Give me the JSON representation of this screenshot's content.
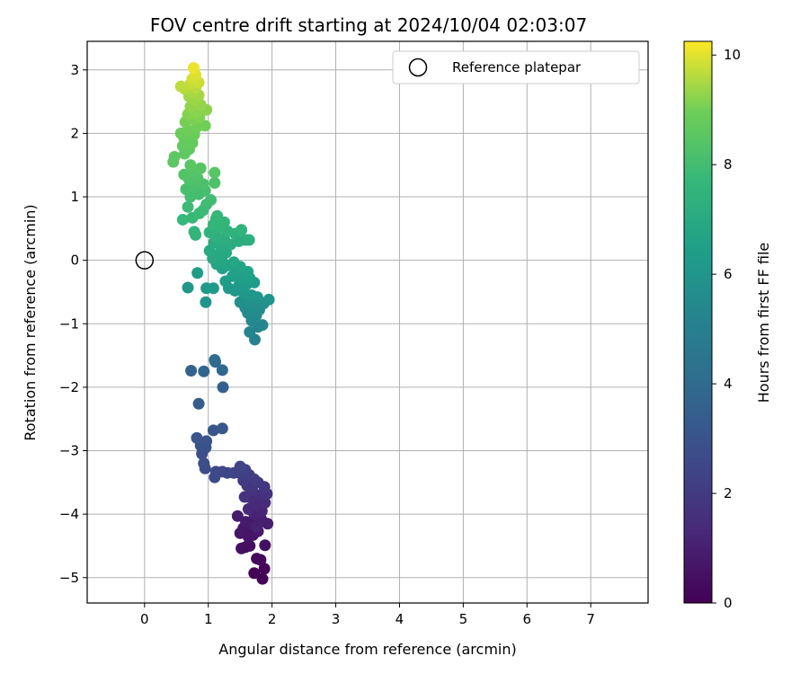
{
  "chart_data": {
    "type": "scatter",
    "title": "FOV centre drift starting at 2024/10/04 02:03:07",
    "xlabel": "Angular distance from reference (arcmin)",
    "ylabel": "Rotation from reference (arcmin)",
    "xlim": [
      -0.9,
      7.9
    ],
    "ylim": [
      -5.4,
      3.45
    ],
    "xticks": [
      0,
      1,
      2,
      3,
      4,
      5,
      6,
      7
    ],
    "yticks": [
      3,
      2,
      1,
      0,
      -1,
      -2,
      -3,
      -4,
      -5
    ],
    "xtick_labels": [
      "0",
      "1",
      "2",
      "3",
      "4",
      "5",
      "6",
      "7"
    ],
    "ytick_labels": [
      "3",
      "2",
      "1",
      "0",
      "−1",
      "−2",
      "−3",
      "−4",
      "−5"
    ],
    "grid": true,
    "legend": {
      "location": "top-right",
      "entries": [
        "Reference platepar"
      ]
    },
    "reference_point": {
      "x": 0,
      "y": 0,
      "label": "Reference platepar"
    },
    "colorbar": {
      "label": "Hours from first FF file",
      "min": 0,
      "max": 10.25,
      "ticks": [
        0,
        2,
        4,
        6,
        8,
        10
      ],
      "tick_labels": [
        "0",
        "2",
        "4",
        "6",
        "8",
        "10"
      ],
      "colormap": "viridis"
    },
    "points": [
      {
        "x": 1.85,
        "y": -5.02,
        "c": 0.05
      },
      {
        "x": 1.72,
        "y": -4.93,
        "c": 0.12
      },
      {
        "x": 1.88,
        "y": -4.86,
        "c": 0.18
      },
      {
        "x": 1.76,
        "y": -4.7,
        "c": 0.25
      },
      {
        "x": 1.82,
        "y": -4.72,
        "c": 0.3
      },
      {
        "x": 1.58,
        "y": -4.52,
        "c": 0.38
      },
      {
        "x": 1.65,
        "y": -4.5,
        "c": 0.42
      },
      {
        "x": 1.52,
        "y": -4.54,
        "c": 0.46
      },
      {
        "x": 1.89,
        "y": -4.49,
        "c": 0.5
      },
      {
        "x": 1.7,
        "y": -4.33,
        "c": 0.55
      },
      {
        "x": 1.61,
        "y": -4.32,
        "c": 0.6
      },
      {
        "x": 1.63,
        "y": -4.36,
        "c": 0.64
      },
      {
        "x": 1.5,
        "y": -4.3,
        "c": 0.68
      },
      {
        "x": 1.55,
        "y": -4.22,
        "c": 0.72
      },
      {
        "x": 1.78,
        "y": -4.27,
        "c": 0.76
      },
      {
        "x": 1.68,
        "y": -4.16,
        "c": 0.8
      },
      {
        "x": 1.59,
        "y": -4.12,
        "c": 0.84
      },
      {
        "x": 1.46,
        "y": -4.03,
        "c": 0.88
      },
      {
        "x": 1.93,
        "y": -4.15,
        "c": 0.92
      },
      {
        "x": 1.83,
        "y": -4.08,
        "c": 0.98
      },
      {
        "x": 1.76,
        "y": -4.2,
        "c": 1.05
      },
      {
        "x": 1.72,
        "y": -4.0,
        "c": 1.12
      },
      {
        "x": 1.84,
        "y": -3.95,
        "c": 1.2
      },
      {
        "x": 1.63,
        "y": -3.92,
        "c": 1.28
      },
      {
        "x": 1.74,
        "y": -3.85,
        "c": 1.36
      },
      {
        "x": 1.89,
        "y": -3.82,
        "c": 1.44
      },
      {
        "x": 1.66,
        "y": -3.74,
        "c": 1.52
      },
      {
        "x": 1.81,
        "y": -3.7,
        "c": 1.6
      },
      {
        "x": 1.92,
        "y": -3.68,
        "c": 1.66
      },
      {
        "x": 1.57,
        "y": -3.73,
        "c": 1.72
      },
      {
        "x": 1.69,
        "y": -3.62,
        "c": 1.78
      },
      {
        "x": 1.88,
        "y": -3.57,
        "c": 1.84
      },
      {
        "x": 1.61,
        "y": -3.55,
        "c": 1.9
      },
      {
        "x": 1.78,
        "y": -3.5,
        "c": 1.96
      },
      {
        "x": 1.55,
        "y": -3.47,
        "c": 2.02
      },
      {
        "x": 1.72,
        "y": -3.45,
        "c": 2.08
      },
      {
        "x": 1.64,
        "y": -3.38,
        "c": 2.14
      },
      {
        "x": 1.49,
        "y": -3.35,
        "c": 2.2
      },
      {
        "x": 1.58,
        "y": -3.3,
        "c": 2.26
      },
      {
        "x": 1.5,
        "y": -3.25,
        "c": 2.32
      },
      {
        "x": 1.4,
        "y": -3.35,
        "c": 2.38
      },
      {
        "x": 1.3,
        "y": -3.35,
        "c": 2.44
      },
      {
        "x": 1.22,
        "y": -3.33,
        "c": 2.5
      },
      {
        "x": 1.12,
        "y": -3.33,
        "c": 2.56
      },
      {
        "x": 1.1,
        "y": -3.42,
        "c": 2.62
      },
      {
        "x": 0.95,
        "y": -3.28,
        "c": 2.68
      },
      {
        "x": 0.93,
        "y": -3.2,
        "c": 2.74
      },
      {
        "x": 0.9,
        "y": -3.05,
        "c": 2.8
      },
      {
        "x": 0.96,
        "y": -2.95,
        "c": 2.86
      },
      {
        "x": 0.88,
        "y": -2.92,
        "c": 2.92
      },
      {
        "x": 0.97,
        "y": -2.85,
        "c": 2.98
      },
      {
        "x": 0.82,
        "y": -2.8,
        "c": 3.04
      },
      {
        "x": 1.08,
        "y": -2.68,
        "c": 3.1
      },
      {
        "x": 1.22,
        "y": -2.65,
        "c": 3.16
      },
      {
        "x": 0.85,
        "y": -2.26,
        "c": 3.35
      },
      {
        "x": 1.23,
        "y": -2.0,
        "c": 3.5
      },
      {
        "x": 0.73,
        "y": -1.74,
        "c": 3.65
      },
      {
        "x": 0.93,
        "y": -1.75,
        "c": 3.75
      },
      {
        "x": 1.22,
        "y": -1.73,
        "c": 3.85
      },
      {
        "x": 1.11,
        "y": -1.6,
        "c": 3.95
      },
      {
        "x": 1.1,
        "y": -1.57,
        "c": 4.05
      },
      {
        "x": 1.73,
        "y": -1.25,
        "c": 5.1
      },
      {
        "x": 1.65,
        "y": -1.13,
        "c": 5.2
      },
      {
        "x": 1.78,
        "y": -1.05,
        "c": 5.28
      },
      {
        "x": 1.85,
        "y": -1.02,
        "c": 5.34
      },
      {
        "x": 1.68,
        "y": -0.95,
        "c": 5.4
      },
      {
        "x": 1.75,
        "y": -0.87,
        "c": 5.46
      },
      {
        "x": 1.62,
        "y": -0.83,
        "c": 5.52
      },
      {
        "x": 1.8,
        "y": -0.78,
        "c": 5.58
      },
      {
        "x": 1.58,
        "y": -0.75,
        "c": 5.64
      },
      {
        "x": 1.7,
        "y": -0.72,
        "c": 5.7
      },
      {
        "x": 1.87,
        "y": -0.68,
        "c": 5.76
      },
      {
        "x": 1.5,
        "y": -0.66,
        "c": 5.82
      },
      {
        "x": 1.63,
        "y": -0.62,
        "c": 5.88
      },
      {
        "x": 1.95,
        "y": -0.62,
        "c": 5.94
      },
      {
        "x": 1.77,
        "y": -0.58,
        "c": 6.0
      },
      {
        "x": 1.68,
        "y": -0.55,
        "c": 6.05
      },
      {
        "x": 1.56,
        "y": -0.52,
        "c": 6.1
      },
      {
        "x": 1.42,
        "y": -0.48,
        "c": 6.15
      },
      {
        "x": 1.32,
        "y": -0.44,
        "c": 6.2
      },
      {
        "x": 1.48,
        "y": -0.4,
        "c": 6.24
      },
      {
        "x": 1.6,
        "y": -0.38,
        "c": 6.28
      },
      {
        "x": 1.72,
        "y": -0.35,
        "c": 6.32
      },
      {
        "x": 1.27,
        "y": -0.33,
        "c": 6.36
      },
      {
        "x": 1.53,
        "y": -0.3,
        "c": 6.4
      },
      {
        "x": 1.65,
        "y": -0.28,
        "c": 6.44
      },
      {
        "x": 1.38,
        "y": -0.25,
        "c": 6.48
      },
      {
        "x": 1.56,
        "y": -0.2,
        "c": 6.52
      },
      {
        "x": 1.45,
        "y": -0.16,
        "c": 6.56
      },
      {
        "x": 1.62,
        "y": -0.18,
        "c": 6.6
      },
      {
        "x": 1.22,
        "y": -0.13,
        "c": 6.64
      },
      {
        "x": 1.5,
        "y": -0.1,
        "c": 6.68
      },
      {
        "x": 1.31,
        "y": -0.08,
        "c": 6.72
      },
      {
        "x": 1.13,
        "y": -0.06,
        "c": 6.76
      },
      {
        "x": 1.4,
        "y": -0.03,
        "c": 6.8
      },
      {
        "x": 1.21,
        "y": 0.0,
        "c": 6.84
      },
      {
        "x": 1.07,
        "y": 0.03,
        "c": 6.88
      },
      {
        "x": 0.68,
        "y": -0.43,
        "c": 6.1
      },
      {
        "x": 0.96,
        "y": -0.66,
        "c": 6.0
      },
      {
        "x": 0.83,
        "y": -0.2,
        "c": 6.3
      },
      {
        "x": 0.97,
        "y": -0.44,
        "c": 6.2
      },
      {
        "x": 1.08,
        "y": -0.44,
        "c": 6.25
      },
      {
        "x": 1.15,
        "y": 0.08,
        "c": 6.92
      },
      {
        "x": 1.28,
        "y": 0.12,
        "c": 6.96
      },
      {
        "x": 1.02,
        "y": 0.15,
        "c": 7.0
      },
      {
        "x": 1.2,
        "y": 0.2,
        "c": 7.04
      },
      {
        "x": 1.35,
        "y": 0.25,
        "c": 7.08
      },
      {
        "x": 1.09,
        "y": 0.28,
        "c": 7.12
      },
      {
        "x": 1.48,
        "y": 0.3,
        "c": 7.16
      },
      {
        "x": 1.58,
        "y": 0.32,
        "c": 7.2
      },
      {
        "x": 1.25,
        "y": 0.34,
        "c": 7.24
      },
      {
        "x": 1.64,
        "y": 0.32,
        "c": 7.28
      },
      {
        "x": 1.13,
        "y": 0.38,
        "c": 7.32
      },
      {
        "x": 1.42,
        "y": 0.42,
        "c": 7.36
      },
      {
        "x": 1.02,
        "y": 0.44,
        "c": 7.4
      },
      {
        "x": 1.3,
        "y": 0.46,
        "c": 7.44
      },
      {
        "x": 1.52,
        "y": 0.48,
        "c": 7.48
      },
      {
        "x": 1.18,
        "y": 0.52,
        "c": 7.52
      },
      {
        "x": 1.08,
        "y": 0.56,
        "c": 7.56
      },
      {
        "x": 1.25,
        "y": 0.6,
        "c": 7.6
      },
      {
        "x": 1.12,
        "y": 0.65,
        "c": 7.64
      },
      {
        "x": 0.8,
        "y": 0.4,
        "c": 7.5
      },
      {
        "x": 0.78,
        "y": 0.45,
        "c": 7.55
      },
      {
        "x": 1.14,
        "y": 0.7,
        "c": 7.68
      },
      {
        "x": 0.6,
        "y": 0.64,
        "c": 7.72
      },
      {
        "x": 0.75,
        "y": 0.67,
        "c": 7.76
      },
      {
        "x": 0.86,
        "y": 0.74,
        "c": 7.8
      },
      {
        "x": 0.92,
        "y": 0.79,
        "c": 7.84
      },
      {
        "x": 0.68,
        "y": 0.84,
        "c": 7.88
      },
      {
        "x": 0.97,
        "y": 0.88,
        "c": 7.92
      },
      {
        "x": 1.04,
        "y": 0.95,
        "c": 7.96
      },
      {
        "x": 0.72,
        "y": 1.0,
        "c": 8.0
      },
      {
        "x": 0.85,
        "y": 1.04,
        "c": 8.04
      },
      {
        "x": 0.95,
        "y": 1.1,
        "c": 8.08
      },
      {
        "x": 0.65,
        "y": 1.12,
        "c": 8.12
      },
      {
        "x": 0.78,
        "y": 1.16,
        "c": 8.16
      },
      {
        "x": 0.92,
        "y": 1.2,
        "c": 8.2
      },
      {
        "x": 1.1,
        "y": 1.22,
        "c": 8.24
      },
      {
        "x": 0.7,
        "y": 1.27,
        "c": 8.28
      },
      {
        "x": 0.83,
        "y": 1.3,
        "c": 8.32
      },
      {
        "x": 0.62,
        "y": 1.35,
        "c": 8.36
      },
      {
        "x": 0.75,
        "y": 1.4,
        "c": 8.4
      },
      {
        "x": 1.1,
        "y": 1.38,
        "c": 8.44
      },
      {
        "x": 0.88,
        "y": 1.45,
        "c": 8.48
      },
      {
        "x": 0.72,
        "y": 1.5,
        "c": 8.52
      },
      {
        "x": 0.45,
        "y": 1.55,
        "c": 8.56
      },
      {
        "x": 0.47,
        "y": 1.63,
        "c": 8.6
      },
      {
        "x": 0.63,
        "y": 1.68,
        "c": 8.64
      },
      {
        "x": 0.7,
        "y": 1.75,
        "c": 8.68
      },
      {
        "x": 0.6,
        "y": 1.8,
        "c": 8.72
      },
      {
        "x": 0.75,
        "y": 1.85,
        "c": 8.76
      },
      {
        "x": 0.62,
        "y": 1.93,
        "c": 8.8
      },
      {
        "x": 0.78,
        "y": 1.98,
        "c": 8.84
      },
      {
        "x": 0.57,
        "y": 2.0,
        "c": 8.88
      },
      {
        "x": 0.68,
        "y": 2.05,
        "c": 8.92
      },
      {
        "x": 0.82,
        "y": 2.1,
        "c": 8.96
      },
      {
        "x": 0.95,
        "y": 2.12,
        "c": 9.0
      },
      {
        "x": 0.64,
        "y": 2.18,
        "c": 9.04
      },
      {
        "x": 0.77,
        "y": 2.22,
        "c": 9.08
      },
      {
        "x": 0.86,
        "y": 2.25,
        "c": 9.12
      },
      {
        "x": 0.68,
        "y": 2.3,
        "c": 9.16
      },
      {
        "x": 0.8,
        "y": 2.33,
        "c": 9.2
      },
      {
        "x": 0.97,
        "y": 2.37,
        "c": 9.24
      },
      {
        "x": 0.72,
        "y": 2.42,
        "c": 9.28
      },
      {
        "x": 0.88,
        "y": 2.45,
        "c": 9.32
      },
      {
        "x": 0.78,
        "y": 2.52,
        "c": 9.36
      },
      {
        "x": 0.7,
        "y": 2.58,
        "c": 9.4
      },
      {
        "x": 0.85,
        "y": 2.6,
        "c": 9.44
      },
      {
        "x": 0.75,
        "y": 2.65,
        "c": 9.5
      },
      {
        "x": 0.63,
        "y": 2.7,
        "c": 9.56
      },
      {
        "x": 0.8,
        "y": 2.72,
        "c": 9.62
      },
      {
        "x": 0.57,
        "y": 2.74,
        "c": 9.68
      },
      {
        "x": 0.72,
        "y": 2.78,
        "c": 9.74
      },
      {
        "x": 0.85,
        "y": 2.8,
        "c": 9.8
      },
      {
        "x": 0.75,
        "y": 2.86,
        "c": 9.86
      },
      {
        "x": 0.8,
        "y": 2.92,
        "c": 9.95
      },
      {
        "x": 0.77,
        "y": 3.03,
        "c": 10.1
      }
    ]
  }
}
